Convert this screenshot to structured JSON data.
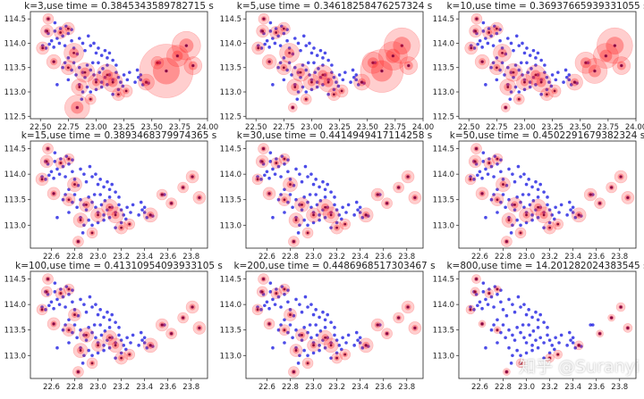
{
  "watermark": "知乎 @Suranyi",
  "chart_data": {
    "type": "scatter",
    "colors": {
      "points": "#1010e0",
      "clusters": "#ff2020",
      "centers": "#8b0a3a"
    },
    "axes_sets": {
      "row1": {
        "xlim": [
          22.41,
          24.0
        ],
        "ylim": [
          112.45,
          114.65
        ],
        "xticks": [
          "22.50",
          "22.75",
          "23.00",
          "23.25",
          "23.50",
          "23.75",
          "24.00"
        ],
        "yticks": [
          "112.5",
          "113.0",
          "113.5",
          "114.0",
          "114.5"
        ]
      },
      "row23": {
        "xlim": [
          22.42,
          23.94
        ],
        "ylim": [
          112.55,
          114.65
        ],
        "xticks": [
          "22.6",
          "22.8",
          "23.0",
          "23.2",
          "23.4",
          "23.6",
          "23.8"
        ],
        "yticks": [
          "113.0",
          "113.5",
          "114.0",
          "114.5"
        ]
      }
    },
    "points": [
      [
        22.52,
        113.95
      ],
      [
        22.55,
        113.9
      ],
      [
        22.58,
        113.98
      ],
      [
        22.6,
        114.05
      ],
      [
        22.62,
        113.92
      ],
      [
        22.65,
        114.1
      ],
      [
        22.67,
        114.0
      ],
      [
        22.7,
        114.15
      ],
      [
        22.72,
        113.95
      ],
      [
        22.75,
        114.2
      ],
      [
        22.78,
        114.05
      ],
      [
        22.8,
        113.9
      ],
      [
        22.57,
        114.2
      ],
      [
        22.63,
        114.25
      ],
      [
        22.68,
        114.3
      ],
      [
        22.73,
        114.35
      ],
      [
        22.78,
        114.28
      ],
      [
        22.85,
        114.1
      ],
      [
        22.88,
        114.0
      ],
      [
        22.9,
        113.85
      ],
      [
        22.93,
        114.15
      ],
      [
        22.95,
        113.95
      ],
      [
        22.98,
        114.0
      ],
      [
        23.0,
        113.8
      ],
      [
        23.02,
        113.9
      ],
      [
        23.05,
        113.75
      ],
      [
        23.08,
        113.85
      ],
      [
        23.1,
        113.7
      ],
      [
        23.12,
        113.8
      ],
      [
        23.15,
        113.65
      ],
      [
        22.75,
        113.7
      ],
      [
        22.8,
        113.6
      ],
      [
        22.85,
        113.5
      ],
      [
        22.78,
        113.45
      ],
      [
        22.82,
        113.35
      ],
      [
        22.88,
        113.4
      ],
      [
        22.9,
        113.3
      ],
      [
        22.95,
        113.45
      ],
      [
        22.98,
        113.35
      ],
      [
        23.0,
        113.25
      ],
      [
        23.03,
        113.4
      ],
      [
        23.05,
        113.2
      ],
      [
        23.08,
        113.3
      ],
      [
        23.1,
        113.15
      ],
      [
        23.12,
        113.35
      ],
      [
        23.15,
        113.25
      ],
      [
        23.18,
        113.4
      ],
      [
        23.2,
        113.3
      ],
      [
        23.22,
        113.2
      ],
      [
        23.25,
        113.35
      ],
      [
        23.28,
        113.25
      ],
      [
        23.3,
        113.4
      ],
      [
        22.72,
        113.6
      ],
      [
        22.7,
        113.5
      ],
      [
        22.92,
        113.1
      ],
      [
        22.95,
        113.0
      ],
      [
        23.0,
        113.05
      ],
      [
        23.05,
        113.1
      ],
      [
        22.85,
        113.15
      ],
      [
        22.88,
        113.0
      ],
      [
        23.15,
        112.95
      ],
      [
        23.2,
        113.05
      ],
      [
        22.65,
        113.15
      ],
      [
        22.75,
        113.25
      ],
      [
        23.1,
        113.55
      ],
      [
        23.18,
        113.55
      ],
      [
        22.97,
        113.6
      ],
      [
        23.02,
        113.6
      ],
      [
        23.35,
        113.2
      ],
      [
        23.38,
        113.3
      ],
      [
        23.4,
        113.25
      ],
      [
        23.42,
        113.15
      ],
      [
        23.45,
        113.2
      ],
      [
        23.47,
        113.18
      ],
      [
        23.37,
        113.45
      ],
      [
        23.4,
        113.35
      ],
      [
        23.55,
        113.6
      ],
      [
        23.57,
        113.6
      ],
      [
        23.63,
        113.43
      ],
      [
        23.73,
        113.74
      ],
      [
        23.81,
        113.95
      ],
      [
        23.87,
        113.54
      ],
      [
        22.57,
        114.5
      ],
      [
        22.83,
        112.68
      ],
      [
        22.62,
        113.62
      ],
      [
        22.87,
        112.85
      ],
      [
        22.55,
        114.25
      ],
      [
        22.63,
        114.42
      ],
      [
        22.92,
        113.55
      ],
      [
        23.06,
        113.48
      ],
      [
        22.83,
        113.78
      ],
      [
        23.24,
        113.12
      ]
    ],
    "cluster_centers": [
      [
        22.57,
        114.5
      ],
      [
        22.56,
        114.25
      ],
      [
        22.52,
        113.9
      ],
      [
        22.75,
        114.3
      ],
      [
        22.68,
        114.22
      ],
      [
        22.8,
        113.8
      ],
      [
        22.62,
        113.62
      ],
      [
        22.75,
        113.5
      ],
      [
        22.9,
        113.4
      ],
      [
        22.85,
        113.1
      ],
      [
        23.1,
        113.35
      ],
      [
        23.15,
        113.2
      ],
      [
        23.0,
        113.2
      ],
      [
        22.83,
        112.68
      ],
      [
        23.2,
        112.95
      ],
      [
        23.45,
        113.2
      ],
      [
        23.55,
        113.6
      ],
      [
        23.63,
        113.43
      ],
      [
        23.81,
        113.95
      ],
      [
        23.87,
        113.54
      ],
      [
        23.73,
        113.74
      ],
      [
        22.95,
        112.85
      ],
      [
        23.27,
        113.02
      ]
    ],
    "panels": [
      {
        "title": "k=3,use time = 0.3845343589782715 s",
        "axes": "row1",
        "cluster_weights": [
          6,
          7,
          7,
          7,
          7,
          11,
          8,
          8,
          11,
          9,
          12,
          11,
          9,
          14,
          7,
          9,
          7,
          30,
          16,
          10,
          12,
          6,
          7
        ]
      },
      {
        "title": "k=5,use time = 0.34618258476257324 s",
        "axes": "row1",
        "cluster_weights": [
          6,
          7,
          7,
          7,
          7,
          11,
          8,
          8,
          10,
          9,
          11,
          11,
          9,
          5,
          7,
          9,
          12,
          24,
          20,
          10,
          16,
          6,
          7
        ]
      },
      {
        "title": "k=10,use time = 0.36937665939331055 s",
        "axes": "row1",
        "cluster_weights": [
          6,
          7,
          7,
          7,
          7,
          10,
          8,
          8,
          10,
          9,
          11,
          11,
          9,
          5,
          7,
          9,
          12,
          14,
          20,
          10,
          14,
          6,
          7
        ]
      },
      {
        "title": "k=15,use time = 0.3893468379974365 s",
        "axes": "row23",
        "cluster_weights": [
          6,
          7,
          7,
          6,
          6,
          8,
          7,
          7,
          8,
          8,
          9,
          9,
          8,
          6,
          7,
          8,
          6,
          6,
          7,
          7,
          6,
          6,
          6
        ]
      },
      {
        "title": "k=30,use time = 0.4414949417114258 s",
        "axes": "row23",
        "cluster_weights": [
          6,
          7,
          6,
          6,
          6,
          8,
          7,
          7,
          8,
          8,
          9,
          9,
          8,
          6,
          7,
          8,
          7,
          6,
          7,
          7,
          6,
          6,
          6
        ]
      },
      {
        "title": "k=50,use time = 0.4502291679382324 s",
        "axes": "row23",
        "cluster_weights": [
          6,
          7,
          6,
          6,
          6,
          8,
          7,
          7,
          8,
          8,
          9,
          9,
          8,
          6,
          7,
          8,
          7,
          6,
          7,
          7,
          6,
          6,
          6
        ]
      },
      {
        "title": "k=100,use time = 0.41310954093933105 s",
        "axes": "row23",
        "cluster_weights": [
          6,
          6,
          6,
          6,
          6,
          7,
          7,
          7,
          8,
          8,
          8,
          8,
          7,
          6,
          7,
          8,
          7,
          6,
          7,
          7,
          6,
          6,
          6
        ]
      },
      {
        "title": "k=200,use time = 0.4486968517303467 s",
        "axes": "row23",
        "cluster_weights": [
          6,
          6,
          6,
          6,
          6,
          7,
          6,
          6,
          7,
          7,
          8,
          8,
          7,
          6,
          6,
          8,
          7,
          6,
          7,
          7,
          6,
          6,
          6
        ]
      },
      {
        "title": "k=800,use time = 14.201282024383545 s",
        "axes": "row23",
        "cluster_weights": [
          5,
          5,
          5,
          4,
          5,
          0,
          4,
          4,
          0,
          0,
          0,
          0,
          0,
          4,
          5,
          5,
          0,
          4,
          5,
          5,
          4,
          5,
          5
        ]
      }
    ]
  }
}
